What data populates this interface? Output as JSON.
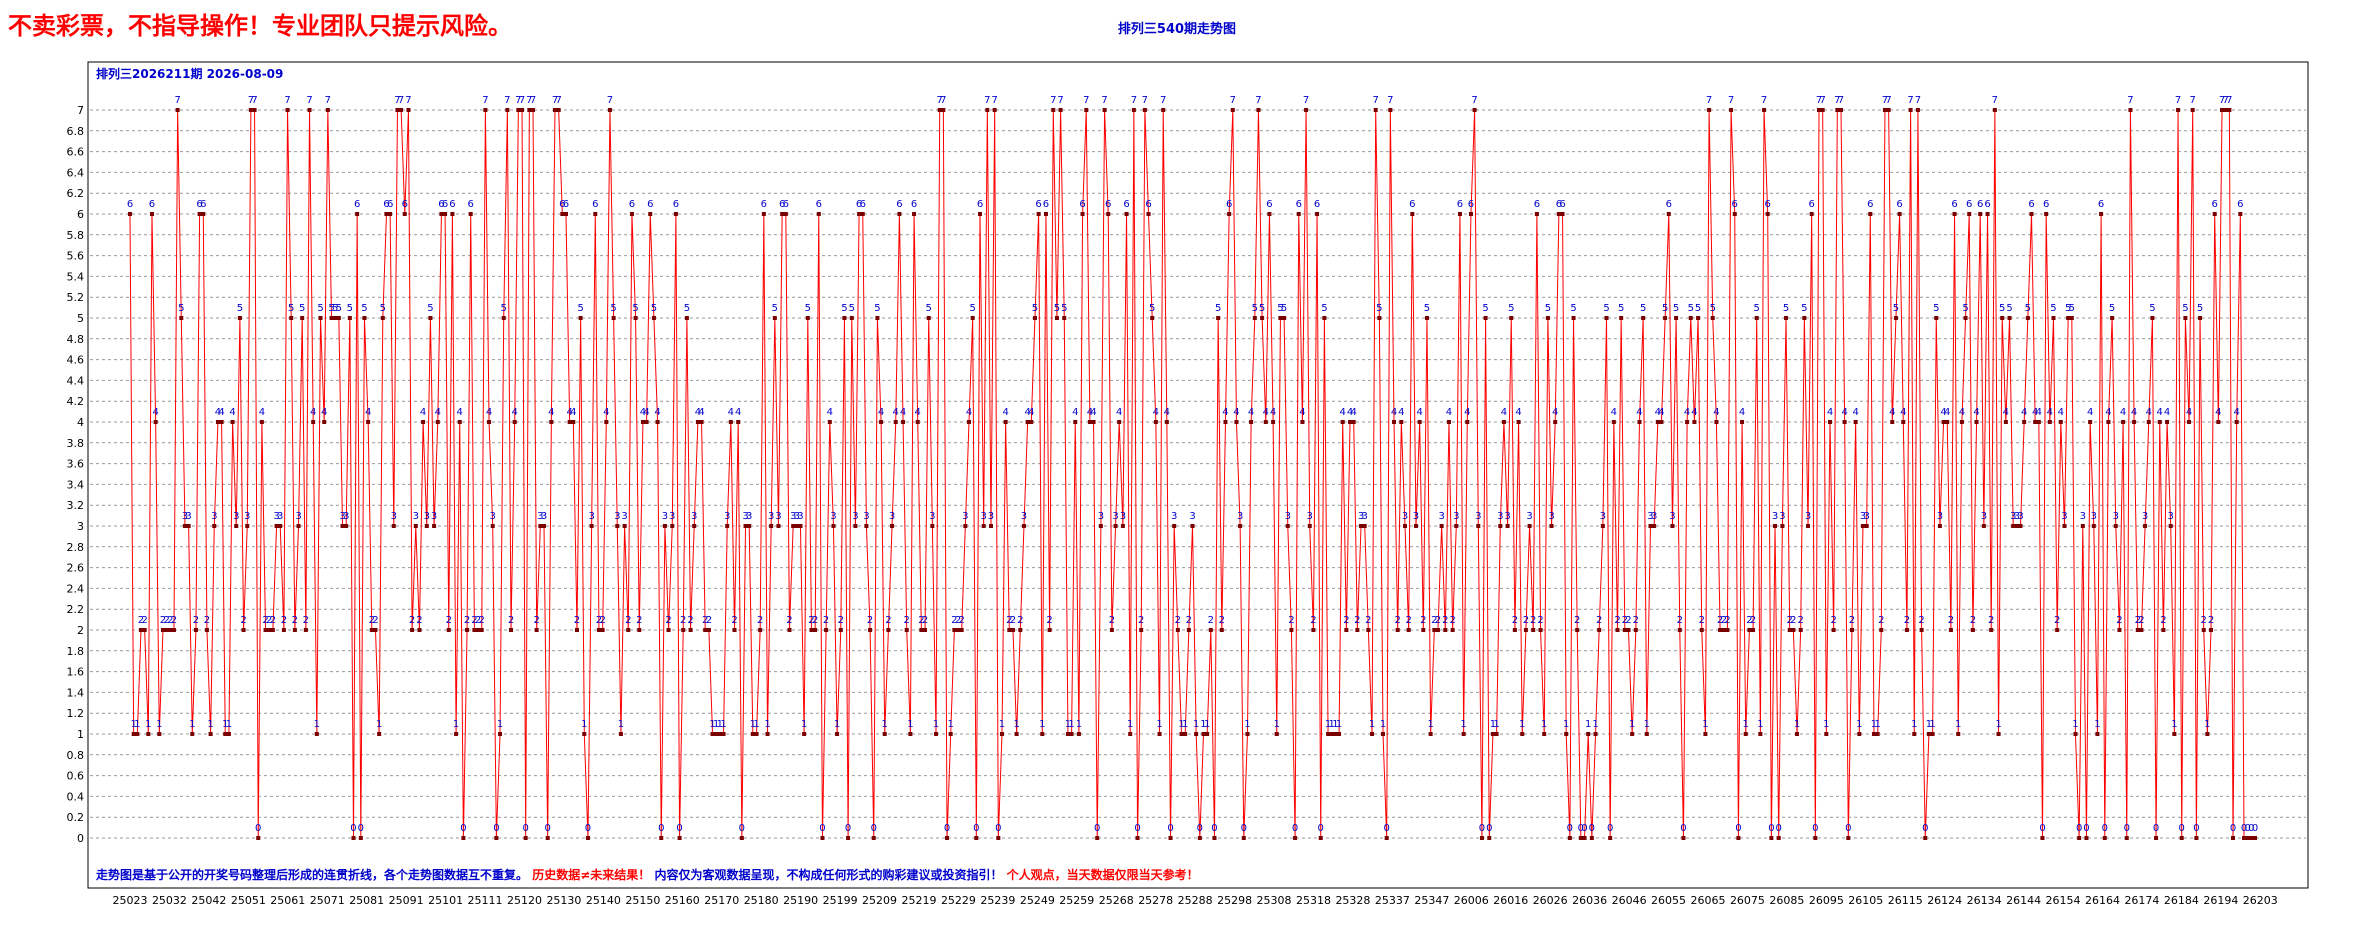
{
  "banner": "不卖彩票，不指导操作！专业团队只提示风险。",
  "chart_data": {
    "type": "line",
    "title": "排列三540期走势图",
    "subtitle": "排列三2026211期 2026-08-09",
    "footer": {
      "part1": "走势图是基于公开的开奖号码整理后形成的连贯折线，各个走势图数据互不重复。",
      "part2": "历史数据≠未来结果！",
      "part3": "内容仅为客观数据呈现，不构成任何形式的购彩建议或投资指引！",
      "part4": "个人观点，当天数据仅限当天参考！"
    },
    "ylim": [
      0,
      7
    ],
    "yticks": [
      "0",
      "0.2",
      "0.4",
      "0.6",
      "0.8",
      "1",
      "1.2",
      "1.4",
      "1.6",
      "1.8",
      "2",
      "2.2",
      "2.4",
      "2.6",
      "2.8",
      "3",
      "3.2",
      "3.4",
      "3.6",
      "3.8",
      "4",
      "4.2",
      "4.4",
      "4.6",
      "4.8",
      "5",
      "5.2",
      "5.4",
      "5.6",
      "5.8",
      "6",
      "6.2",
      "6.4",
      "6.6",
      "6.8",
      "7"
    ],
    "xticks": [
      "25023",
      "25032",
      "25042",
      "25051",
      "25061",
      "25071",
      "25081",
      "25091",
      "25101",
      "25111",
      "25120",
      "25130",
      "25140",
      "25150",
      "25160",
      "25170",
      "25180",
      "25190",
      "25199",
      "25209",
      "25219",
      "25229",
      "25239",
      "25249",
      "25259",
      "25268",
      "25278",
      "25288",
      "25298",
      "25308",
      "25318",
      "25328",
      "25337",
      "25347",
      "26006",
      "26016",
      "26026",
      "26036",
      "26046",
      "26055",
      "26065",
      "26075",
      "26085",
      "26095",
      "26105",
      "26115",
      "26124",
      "26134",
      "26144",
      "26154",
      "26164",
      "26174",
      "26184",
      "26194",
      "26203"
    ],
    "grid": true,
    "line_color": "#ff0000",
    "marker_color": "#7a0000",
    "label_color": "#0000cc",
    "values": [
      6,
      1,
      1,
      2,
      2,
      1,
      6,
      4,
      1,
      2,
      2,
      2,
      2,
      7,
      5,
      3,
      3,
      1,
      2,
      6,
      6,
      2,
      1,
      3,
      4,
      4,
      1,
      1,
      4,
      3,
      5,
      2,
      3,
      7,
      7,
      0,
      4,
      2,
      2,
      2,
      3,
      3,
      2,
      7,
      5,
      2,
      3,
      5,
      2,
      7,
      4,
      1,
      5,
      4,
      7,
      5,
      5,
      5,
      3,
      3,
      5,
      0,
      6,
      0,
      5,
      4,
      2,
      2,
      1,
      5,
      6,
      6,
      3,
      7,
      7,
      6,
      7,
      2,
      3,
      2,
      4,
      3,
      5,
      3,
      4,
      6,
      6,
      2,
      6,
      1,
      4,
      0,
      2,
      6,
      2,
      2,
      2,
      7,
      4,
      3,
      0,
      1,
      5,
      7,
      2,
      4,
      7,
      7,
      0,
      7,
      7,
      2,
      3,
      3,
      0,
      4,
      7,
      7,
      6,
      6,
      4,
      4,
      2,
      5,
      1,
      0,
      3,
      6,
      2,
      2,
      4,
      7,
      5,
      3,
      1,
      3,
      2,
      6,
      5,
      2,
      4,
      4,
      6,
      5,
      4,
      0,
      3,
      2,
      3,
      6,
      0,
      2,
      5,
      2,
      3,
      4,
      4,
      2,
      2,
      1,
      1,
      1,
      1,
      3,
      4,
      2,
      4,
      0,
      3,
      3,
      1,
      1,
      2,
      6,
      1,
      3,
      5,
      3,
      6,
      6,
      2,
      3,
      3,
      3,
      1,
      5,
      2,
      2,
      6,
      0,
      2,
      4,
      3,
      1,
      2,
      5,
      0,
      5,
      3,
      6,
      6,
      3,
      2,
      0,
      5,
      4,
      1,
      2,
      3,
      4,
      6,
      4,
      2,
      1,
      6,
      4,
      2,
      2,
      5,
      3,
      1,
      7,
      7,
      0,
      1,
      2,
      2,
      2,
      3,
      4,
      5,
      0,
      6,
      3,
      7,
      3,
      7,
      0,
      1,
      4,
      2,
      2,
      1,
      2,
      3,
      4,
      4,
      5,
      6,
      1,
      6,
      2,
      7,
      5,
      7,
      5,
      1,
      1,
      4,
      1,
      6,
      7,
      4,
      4,
      0,
      3,
      7,
      6,
      2,
      3,
      4,
      3,
      6,
      1,
      7,
      0,
      2,
      7,
      6,
      5,
      4,
      1,
      7,
      4,
      0,
      3,
      2,
      1,
      1,
      2,
      3,
      1,
      0,
      1,
      1,
      2,
      0,
      5,
      2,
      4,
      6,
      7,
      4,
      3,
      0,
      1,
      4,
      5,
      7,
      5,
      4,
      6,
      4,
      1,
      5,
      5,
      3,
      2,
      0,
      6,
      4,
      7,
      3,
      2,
      6,
      0,
      5,
      1,
      1,
      1,
      1,
      4,
      2,
      4,
      4,
      2,
      3,
      3,
      2,
      1,
      7,
      5,
      1,
      0,
      7,
      4,
      2,
      4,
      3,
      2,
      6,
      3,
      4,
      2,
      5,
      1,
      2,
      2,
      3,
      2,
      4,
      2,
      3,
      6,
      1,
      4,
      6,
      7,
      3,
      0,
      5,
      0,
      1,
      1,
      3,
      4,
      3,
      5,
      2,
      4,
      1,
      2,
      3,
      2,
      6,
      2,
      1,
      5,
      3,
      4,
      6,
      6,
      1,
      0,
      5,
      2,
      0,
      0,
      1,
      0,
      1,
      2,
      3,
      5,
      0,
      4,
      2,
      5,
      2,
      2,
      1,
      2,
      4,
      5,
      1,
      3,
      3,
      4,
      4,
      5,
      6,
      3,
      5,
      2,
      0,
      4,
      5,
      4,
      5,
      2,
      1,
      7,
      5,
      4,
      2,
      2,
      2,
      7,
      6,
      0,
      4,
      1,
      2,
      2,
      5,
      1,
      7,
      6,
      0,
      3,
      0,
      3,
      5,
      2,
      2,
      1,
      2,
      5,
      3,
      6,
      0,
      7,
      7,
      1,
      4,
      2,
      7,
      7,
      4,
      0,
      2,
      4,
      1,
      3,
      3,
      6,
      1,
      1,
      2,
      7,
      7,
      4,
      5,
      6,
      4,
      2,
      7,
      1,
      7,
      2,
      0,
      1,
      1,
      5,
      3,
      4,
      4,
      2,
      6,
      1,
      4,
      5,
      6,
      2,
      4,
      6,
      3,
      6,
      2,
      7,
      1,
      5,
      4,
      5,
      3,
      3,
      3,
      4,
      5,
      6,
      4,
      4,
      0,
      6,
      4,
      5,
      2,
      4,
      3,
      5,
      5,
      1,
      0,
      3,
      0,
      4,
      3,
      1,
      6,
      0,
      4,
      5,
      3,
      2,
      4,
      0,
      7,
      4,
      2,
      2,
      3,
      4,
      5,
      0,
      4,
      2,
      4,
      3,
      1,
      7,
      0,
      5,
      4,
      7,
      0,
      5,
      2,
      1,
      2,
      6,
      4,
      7,
      7,
      7,
      0,
      4,
      6,
      0,
      0,
      0,
      0
    ]
  }
}
